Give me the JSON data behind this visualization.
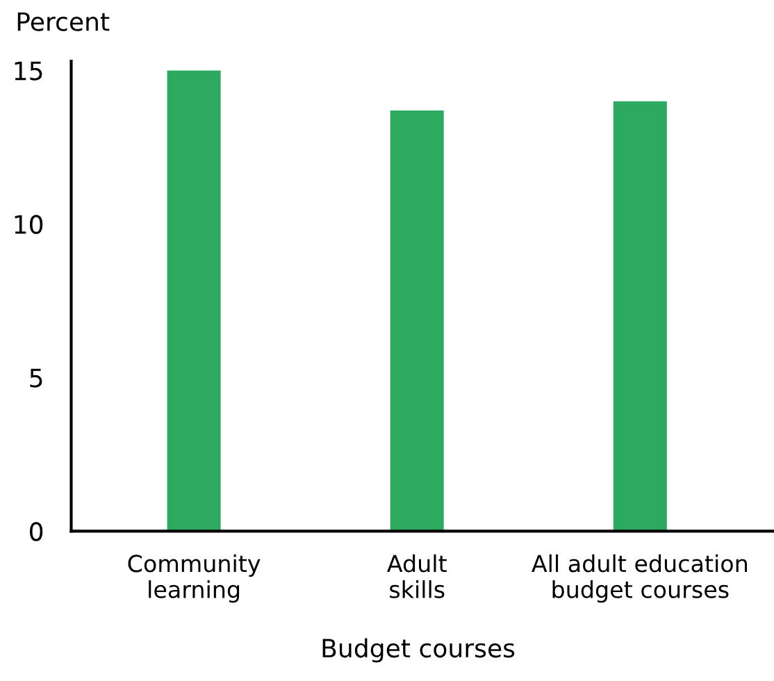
{
  "chart_data": {
    "type": "bar",
    "xlabel": "Budget courses",
    "ylabel": "Percent",
    "categories": [
      "Community\nlearning",
      "Adult\nskills",
      "All adult education\nbudget courses"
    ],
    "values": [
      15.0,
      13.7,
      14.0
    ],
    "color": "#2eaa60",
    "ylim": [
      0,
      15.3
    ],
    "yticks": [
      0,
      5,
      10,
      15
    ],
    "grid": false
  }
}
